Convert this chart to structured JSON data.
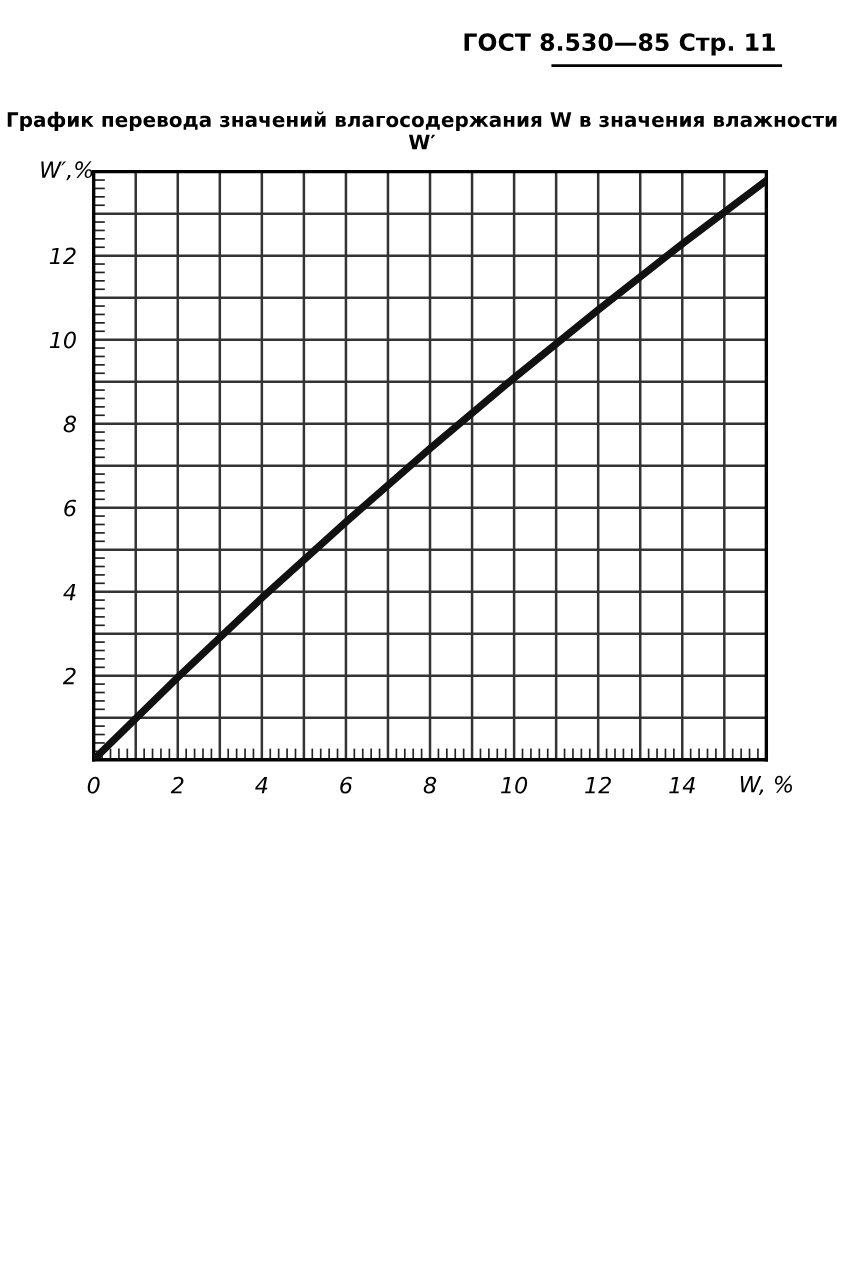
{
  "chart_data": {
    "type": "line",
    "title": "График перевода значений влагосодержания W в значения влажности W′",
    "annotations": [
      "ГОСТ 8.530—85 Стр. 11"
    ],
    "xlabel": "W, %",
    "ylabel": "W′,%",
    "x": [
      0,
      2,
      4,
      6,
      8,
      10,
      12,
      14,
      16
    ],
    "series": [
      {
        "color": "#111111",
        "values": [
          0,
          1.96,
          3.85,
          5.66,
          7.41,
          9.09,
          10.71,
          12.28,
          13.79
        ]
      }
    ],
    "xlim": [
      0,
      16
    ],
    "ylim": [
      0,
      14
    ],
    "xticks": [
      0,
      {
        "value": 1,
        "label": null
      },
      2,
      {
        "value": 3,
        "label": null
      },
      4,
      {
        "value": 5,
        "label": null
      },
      6,
      {
        "value": 7,
        "label": null
      },
      8,
      {
        "value": 9,
        "label": null
      },
      10,
      {
        "value": 11,
        "label": null
      },
      12,
      {
        "value": 13,
        "label": null
      },
      14,
      {
        "value": 15,
        "label": null
      },
      {
        "value": 16,
        "label": null
      }
    ],
    "yticks": [
      {
        "value": 0,
        "label": null
      },
      {
        "value": 1,
        "label": null
      },
      2,
      {
        "value": 3,
        "label": null
      },
      4,
      {
        "value": 5,
        "label": null
      },
      6,
      {
        "value": 7,
        "label": null
      },
      8,
      {
        "value": 9,
        "label": null
      },
      10,
      {
        "value": 11,
        "label": null
      },
      12,
      {
        "value": 13,
        "label": null
      },
      {
        "value": 14,
        "label": null
      }
    ],
    "grid": true,
    "legend": false,
    "marker": "none",
    "line_style": "solid"
  }
}
